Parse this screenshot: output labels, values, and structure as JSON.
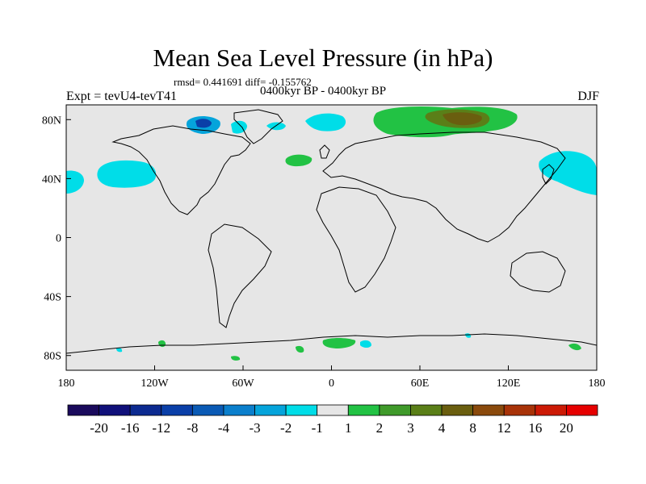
{
  "title": "Mean Sea Level Pressure (in hPa)",
  "stats": "rmsd= 0.441691 diff= -0.155762",
  "subtitle": "0400kyr BP - 0400kyr BP",
  "expt_label": "Expt = tevU4-tevT41",
  "season": "DJF",
  "axes": {
    "x_ticks": [
      {
        "lon": -180,
        "label": "180"
      },
      {
        "lon": -120,
        "label": "120W"
      },
      {
        "lon": -60,
        "label": "60W"
      },
      {
        "lon": 0,
        "label": "0"
      },
      {
        "lon": 60,
        "label": "60E"
      },
      {
        "lon": 120,
        "label": "120E"
      },
      {
        "lon": 180,
        "label": "180"
      }
    ],
    "y_ticks": [
      {
        "lat": 80,
        "label": "80N"
      },
      {
        "lat": 40,
        "label": "40N"
      },
      {
        "lat": 0,
        "label": "0"
      },
      {
        "lat": -40,
        "label": "40S"
      },
      {
        "lat": -80,
        "label": "80S"
      }
    ],
    "lon_range": [
      -180,
      180
    ],
    "lat_range": [
      -90,
      90
    ]
  },
  "colors": {
    "background_field": "#e6e6e6",
    "coastline": "#000000"
  },
  "colorbar": {
    "labels": [
      "-20",
      "-16",
      "-12",
      "-8",
      "-4",
      "-3",
      "-2",
      "-1",
      "1",
      "2",
      "3",
      "4",
      "8",
      "12",
      "16",
      "20"
    ],
    "colors": [
      "#1a0a5c",
      "#10107a",
      "#0c2a90",
      "#0a3fa8",
      "#0a5ab5",
      "#0b7fcc",
      "#05a4db",
      "#00dde8",
      "#e6e6e6",
      "#22c244",
      "#3f9a2a",
      "#5a7f18",
      "#6a5e0f",
      "#8a4a0c",
      "#a83308",
      "#cc1a05",
      "#e60000"
    ]
  },
  "anomaly_regions": [
    {
      "value": "-1",
      "color": "#00dde8",
      "center": [
        -160,
        40
      ]
    },
    {
      "value": "-1",
      "color": "#00dde8",
      "center": [
        -178,
        38
      ]
    },
    {
      "value": "-1",
      "color": "#00dde8",
      "center": [
        160,
        40
      ]
    },
    {
      "value": "-1",
      "color": "#00dde8",
      "center": [
        -10,
        82
      ]
    },
    {
      "value": "2",
      "color": "#22c244",
      "center": [
        60,
        80
      ]
    },
    {
      "value": "2",
      "color": "#22c244",
      "center": [
        -25,
        50
      ]
    },
    {
      "value": "4",
      "color": "#6a5e0f",
      "center": [
        85,
        83
      ]
    },
    {
      "value": "-2",
      "color": "#05a4db",
      "center": [
        -85,
        82
      ]
    }
  ]
}
